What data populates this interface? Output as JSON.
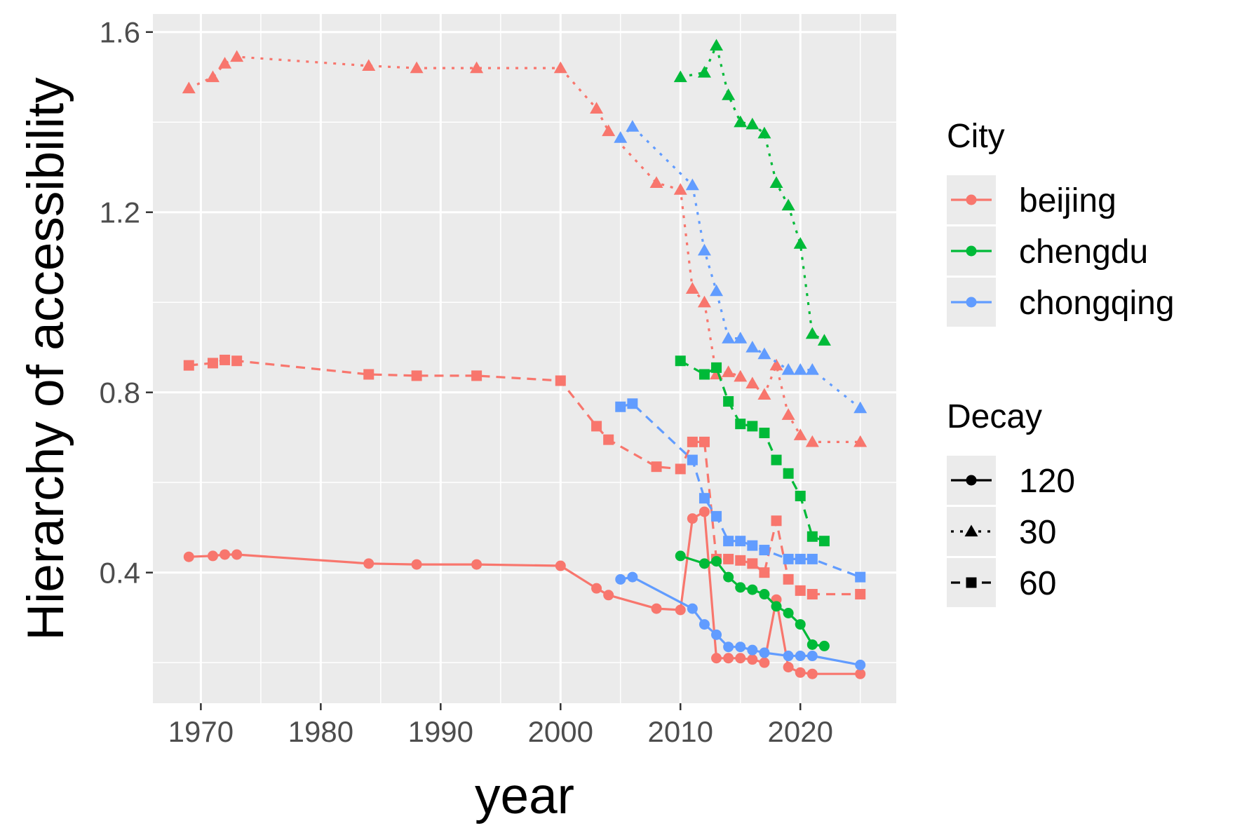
{
  "chart_data": {
    "type": "line",
    "xlabel": "year",
    "ylabel": "Hierarchy of accessibility",
    "xlim": [
      1966,
      2028
    ],
    "ylim": [
      0.11,
      1.64
    ],
    "xticks": [
      1970,
      1980,
      1990,
      2000,
      2010,
      2020
    ],
    "yticks": [
      0.4,
      0.8,
      1.2,
      1.6
    ],
    "xtick_labels": [
      "1970",
      "1980",
      "1990",
      "2000",
      "2010",
      "2020"
    ],
    "ytick_labels": [
      "0.4",
      "0.8",
      "1.2",
      "1.6"
    ],
    "grid": true,
    "legend": {
      "position": "right",
      "city": {
        "title": "City",
        "entries": [
          {
            "label": "beijing",
            "color": "#F8766D"
          },
          {
            "label": "chengdu",
            "color": "#00BA38"
          },
          {
            "label": "chongqing",
            "color": "#619CFF"
          }
        ]
      },
      "decay": {
        "title": "Decay",
        "entries": [
          {
            "label": "120",
            "linetype": "solid",
            "shape": "circle"
          },
          {
            "label": "30",
            "linetype": "dotted",
            "shape": "triangle"
          },
          {
            "label": "60",
            "linetype": "dashed",
            "shape": "square"
          }
        ]
      }
    },
    "series": [
      {
        "city": "beijing",
        "decay": "30",
        "x": [
          1969,
          1971,
          1972,
          1973,
          1984,
          1988,
          1993,
          2000,
          2003,
          2004,
          2008,
          2010,
          2011,
          2012,
          2013,
          2014,
          2015,
          2016,
          2017,
          2018,
          2019,
          2020,
          2021,
          2025
        ],
        "y": [
          1.475,
          1.5,
          1.53,
          1.545,
          1.525,
          1.52,
          1.52,
          1.52,
          1.43,
          1.38,
          1.265,
          1.25,
          1.03,
          1.0,
          0.84,
          0.845,
          0.835,
          0.82,
          0.795,
          0.86,
          0.75,
          0.705,
          0.69,
          0.69
        ]
      },
      {
        "city": "beijing",
        "decay": "60",
        "x": [
          1969,
          1971,
          1972,
          1973,
          1984,
          1988,
          1993,
          2000,
          2003,
          2004,
          2008,
          2010,
          2011,
          2012,
          2013,
          2014,
          2015,
          2016,
          2017,
          2018,
          2019,
          2020,
          2021,
          2025
        ],
        "y": [
          0.86,
          0.865,
          0.872,
          0.87,
          0.84,
          0.837,
          0.837,
          0.826,
          0.725,
          0.695,
          0.635,
          0.63,
          0.69,
          0.69,
          0.43,
          0.43,
          0.427,
          0.42,
          0.4,
          0.515,
          0.385,
          0.36,
          0.352,
          0.352
        ]
      },
      {
        "city": "beijing",
        "decay": "120",
        "x": [
          1969,
          1971,
          1972,
          1973,
          1984,
          1988,
          1993,
          2000,
          2003,
          2004,
          2008,
          2010,
          2011,
          2012,
          2013,
          2014,
          2015,
          2016,
          2017,
          2018,
          2019,
          2020,
          2021,
          2025
        ],
        "y": [
          0.435,
          0.437,
          0.44,
          0.44,
          0.42,
          0.418,
          0.418,
          0.415,
          0.365,
          0.35,
          0.32,
          0.317,
          0.52,
          0.535,
          0.21,
          0.21,
          0.21,
          0.207,
          0.2,
          0.34,
          0.19,
          0.178,
          0.175,
          0.175
        ]
      },
      {
        "city": "chengdu",
        "decay": "30",
        "x": [
          2010,
          2012,
          2013,
          2014,
          2015,
          2016,
          2017,
          2018,
          2019,
          2020,
          2021,
          2022
        ],
        "y": [
          1.5,
          1.51,
          1.57,
          1.46,
          1.4,
          1.395,
          1.375,
          1.265,
          1.215,
          1.13,
          0.93,
          0.915
        ]
      },
      {
        "city": "chengdu",
        "decay": "60",
        "x": [
          2010,
          2012,
          2013,
          2014,
          2015,
          2016,
          2017,
          2018,
          2019,
          2020,
          2021,
          2022
        ],
        "y": [
          0.87,
          0.84,
          0.855,
          0.78,
          0.73,
          0.725,
          0.71,
          0.65,
          0.62,
          0.57,
          0.48,
          0.47
        ]
      },
      {
        "city": "chengdu",
        "decay": "120",
        "x": [
          2010,
          2012,
          2013,
          2014,
          2015,
          2016,
          2017,
          2018,
          2019,
          2020,
          2021,
          2022
        ],
        "y": [
          0.437,
          0.42,
          0.425,
          0.39,
          0.367,
          0.362,
          0.352,
          0.325,
          0.31,
          0.285,
          0.24,
          0.237
        ]
      },
      {
        "city": "chongqing",
        "decay": "30",
        "x": [
          2005,
          2006,
          2011,
          2012,
          2013,
          2014,
          2015,
          2016,
          2017,
          2019,
          2020,
          2021,
          2025
        ],
        "y": [
          1.365,
          1.39,
          1.26,
          1.115,
          1.025,
          0.92,
          0.92,
          0.9,
          0.885,
          0.85,
          0.85,
          0.85,
          0.765
        ]
      },
      {
        "city": "chongqing",
        "decay": "60",
        "x": [
          2005,
          2006,
          2011,
          2012,
          2013,
          2014,
          2015,
          2016,
          2017,
          2019,
          2020,
          2021,
          2025
        ],
        "y": [
          0.768,
          0.775,
          0.65,
          0.565,
          0.525,
          0.47,
          0.47,
          0.46,
          0.45,
          0.43,
          0.43,
          0.43,
          0.39
        ]
      },
      {
        "city": "chongqing",
        "decay": "120",
        "x": [
          2005,
          2006,
          2011,
          2012,
          2013,
          2014,
          2015,
          2016,
          2017,
          2019,
          2020,
          2021,
          2025
        ],
        "y": [
          0.385,
          0.39,
          0.32,
          0.285,
          0.262,
          0.235,
          0.235,
          0.228,
          0.222,
          0.215,
          0.215,
          0.215,
          0.195
        ]
      }
    ]
  }
}
